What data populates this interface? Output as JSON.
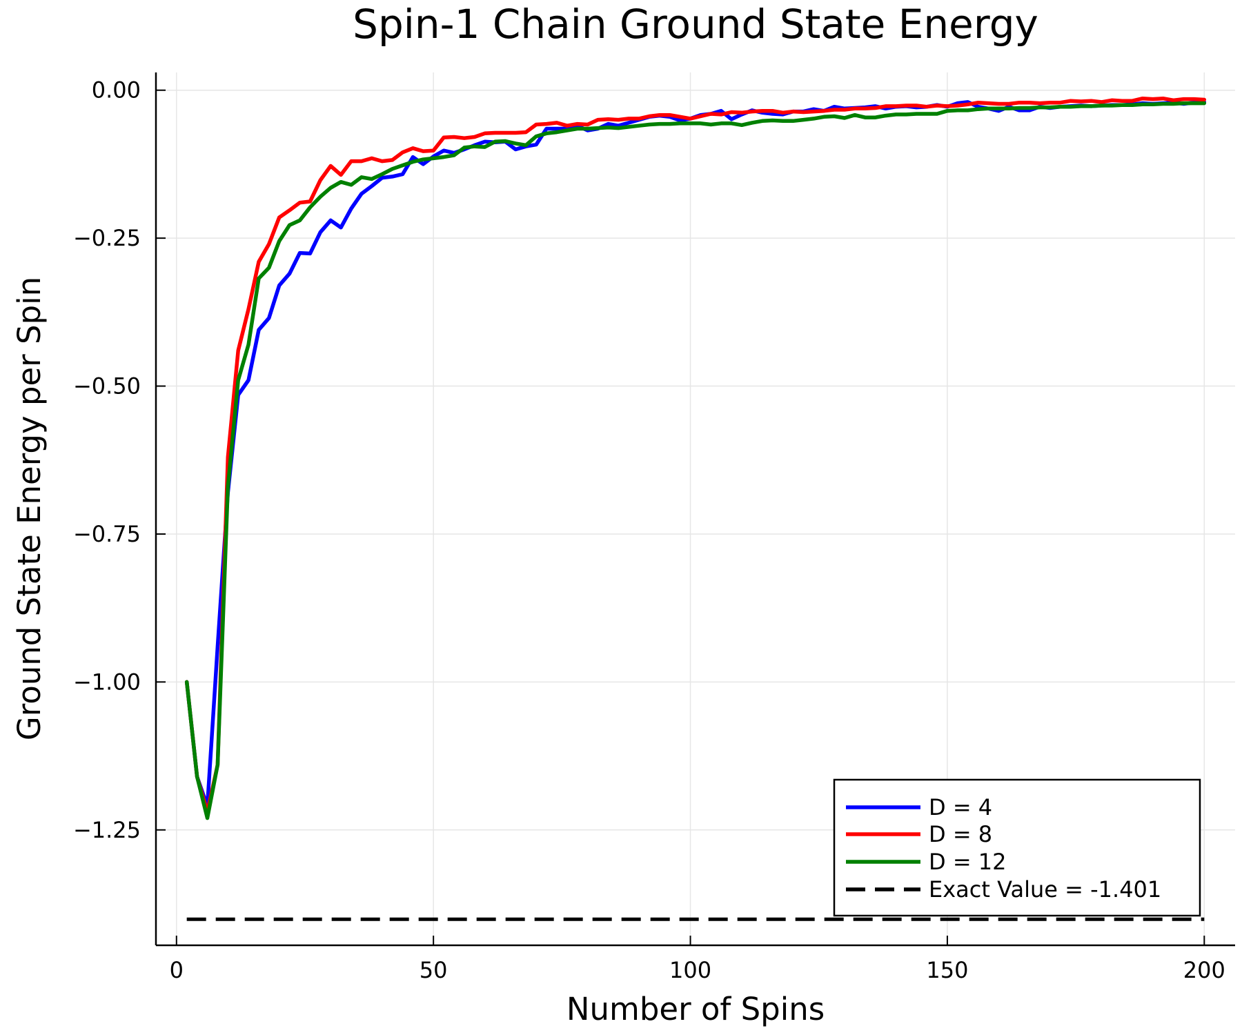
{
  "chart_data": {
    "type": "line",
    "title": "Spin-1 Chain Ground State Energy",
    "xlabel": "Number of Spins",
    "ylabel": "Ground State Energy per Spin",
    "xlim": [
      -4,
      206
    ],
    "ylim": [
      -1.445,
      0.03
    ],
    "xticks": [
      0,
      50,
      100,
      150,
      200
    ],
    "xtick_labels": [
      "0",
      "50",
      "100",
      "150",
      "200"
    ],
    "yticks": [
      0.0,
      -0.25,
      -0.5,
      -0.75,
      -1.0,
      -1.25
    ],
    "ytick_labels": [
      "0.00",
      "−0.25",
      "−0.50",
      "−0.75",
      "−1.00",
      "−1.25"
    ],
    "grid": true,
    "legend_position": "bottom-right",
    "x": [
      2,
      4,
      6,
      8,
      10,
      12,
      14,
      16,
      18,
      20,
      22,
      24,
      26,
      28,
      30,
      32,
      34,
      36,
      38,
      40,
      42,
      44,
      46,
      48,
      50,
      52,
      54,
      56,
      58,
      60,
      62,
      64,
      66,
      68,
      70,
      72,
      74,
      76,
      78,
      80,
      82,
      84,
      86,
      88,
      90,
      92,
      94,
      96,
      98,
      100,
      102,
      104,
      106,
      108,
      110,
      112,
      114,
      116,
      118,
      120,
      122,
      124,
      126,
      128,
      130,
      132,
      134,
      136,
      138,
      140,
      142,
      144,
      146,
      148,
      150,
      152,
      154,
      156,
      158,
      160,
      162,
      164,
      166,
      168,
      170,
      172,
      174,
      176,
      178,
      180,
      182,
      184,
      186,
      188,
      190,
      192,
      194,
      196,
      198,
      200
    ],
    "series": [
      {
        "name": "D = 4",
        "color": "#0000ff",
        "dash": "solid",
        "values": [
          -1.0,
          -1.16,
          -1.21,
          -0.94,
          -0.68,
          -0.515,
          -0.49,
          -0.405,
          -0.385,
          -0.33,
          -0.31,
          -0.275,
          -0.276,
          -0.24,
          -0.22,
          -0.232,
          -0.2,
          -0.175,
          -0.162,
          -0.148,
          -0.146,
          -0.142,
          -0.113,
          -0.125,
          -0.112,
          -0.102,
          -0.106,
          -0.1,
          -0.093,
          -0.087,
          -0.088,
          -0.087,
          -0.1,
          -0.095,
          -0.092,
          -0.065,
          -0.065,
          -0.065,
          -0.06,
          -0.068,
          -0.065,
          -0.057,
          -0.06,
          -0.055,
          -0.05,
          -0.045,
          -0.043,
          -0.045,
          -0.051,
          -0.048,
          -0.042,
          -0.04,
          -0.035,
          -0.049,
          -0.041,
          -0.034,
          -0.038,
          -0.04,
          -0.041,
          -0.036,
          -0.036,
          -0.032,
          -0.035,
          -0.028,
          -0.031,
          -0.03,
          -0.029,
          -0.027,
          -0.031,
          -0.028,
          -0.027,
          -0.029,
          -0.028,
          -0.025,
          -0.028,
          -0.022,
          -0.02,
          -0.028,
          -0.031,
          -0.035,
          -0.028,
          -0.034,
          -0.034,
          -0.028,
          -0.03,
          -0.028,
          -0.027,
          -0.026,
          -0.027,
          -0.026,
          -0.025,
          -0.025,
          -0.024,
          -0.022,
          -0.023,
          -0.022,
          -0.021,
          -0.023,
          -0.021,
          -0.02
        ]
      },
      {
        "name": "D = 8",
        "color": "#ff0000",
        "dash": "solid",
        "values": [
          -1.0,
          -1.16,
          -1.22,
          -1.14,
          -0.62,
          -0.44,
          -0.37,
          -0.29,
          -0.26,
          -0.215,
          -0.203,
          -0.19,
          -0.188,
          -0.152,
          -0.128,
          -0.143,
          -0.12,
          -0.12,
          -0.115,
          -0.12,
          -0.118,
          -0.105,
          -0.098,
          -0.103,
          -0.102,
          -0.08,
          -0.079,
          -0.081,
          -0.079,
          -0.073,
          -0.072,
          -0.072,
          -0.072,
          -0.071,
          -0.058,
          -0.057,
          -0.055,
          -0.06,
          -0.057,
          -0.058,
          -0.05,
          -0.049,
          -0.05,
          -0.048,
          -0.048,
          -0.044,
          -0.042,
          -0.042,
          -0.045,
          -0.048,
          -0.044,
          -0.04,
          -0.041,
          -0.037,
          -0.038,
          -0.036,
          -0.035,
          -0.035,
          -0.038,
          -0.036,
          -0.037,
          -0.036,
          -0.035,
          -0.033,
          -0.033,
          -0.031,
          -0.031,
          -0.03,
          -0.027,
          -0.027,
          -0.026,
          -0.026,
          -0.028,
          -0.026,
          -0.027,
          -0.026,
          -0.024,
          -0.021,
          -0.022,
          -0.023,
          -0.023,
          -0.021,
          -0.021,
          -0.022,
          -0.021,
          -0.021,
          -0.018,
          -0.019,
          -0.018,
          -0.02,
          -0.017,
          -0.018,
          -0.018,
          -0.014,
          -0.015,
          -0.014,
          -0.017,
          -0.015,
          -0.015,
          -0.016
        ]
      },
      {
        "name": "D = 12",
        "color": "#008000",
        "dash": "solid",
        "values": [
          -1.0,
          -1.16,
          -1.23,
          -1.14,
          -0.67,
          -0.49,
          -0.43,
          -0.318,
          -0.3,
          -0.255,
          -0.228,
          -0.22,
          -0.198,
          -0.18,
          -0.165,
          -0.155,
          -0.16,
          -0.147,
          -0.15,
          -0.142,
          -0.133,
          -0.127,
          -0.121,
          -0.117,
          -0.115,
          -0.113,
          -0.11,
          -0.097,
          -0.095,
          -0.096,
          -0.087,
          -0.086,
          -0.09,
          -0.093,
          -0.078,
          -0.073,
          -0.071,
          -0.068,
          -0.065,
          -0.065,
          -0.064,
          -0.063,
          -0.064,
          -0.062,
          -0.06,
          -0.058,
          -0.057,
          -0.057,
          -0.056,
          -0.056,
          -0.056,
          -0.058,
          -0.056,
          -0.056,
          -0.059,
          -0.055,
          -0.052,
          -0.051,
          -0.052,
          -0.052,
          -0.05,
          -0.048,
          -0.045,
          -0.044,
          -0.047,
          -0.042,
          -0.046,
          -0.046,
          -0.043,
          -0.041,
          -0.041,
          -0.04,
          -0.04,
          -0.04,
          -0.035,
          -0.034,
          -0.034,
          -0.032,
          -0.031,
          -0.031,
          -0.031,
          -0.03,
          -0.03,
          -0.029,
          -0.029,
          -0.028,
          -0.028,
          -0.027,
          -0.027,
          -0.026,
          -0.026,
          -0.025,
          -0.025,
          -0.024,
          -0.024,
          -0.023,
          -0.023,
          -0.022,
          -0.022,
          -0.022
        ]
      }
    ],
    "reference_line": {
      "name": "Exact Value = -1.401",
      "value": -1.401,
      "x_range": [
        2,
        200
      ],
      "color": "#000000",
      "dash": "dashed"
    }
  }
}
